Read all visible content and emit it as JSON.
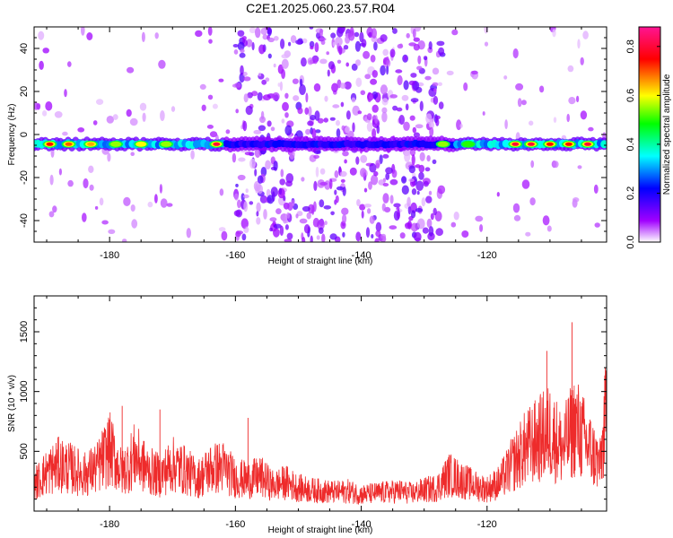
{
  "figure_title": "C2E1.2025.060.23.57.R04",
  "colors": {
    "snr_line": "#ee2b2b",
    "colormap": [
      "#ffffff",
      "#a000ff",
      "#0000ff",
      "#00ffff",
      "#00ff00",
      "#ffff00",
      "#ff0000",
      "#ff1493"
    ]
  },
  "chart_data": [
    {
      "type": "heatmap",
      "xlabel": "Height of straight line (km)",
      "ylabel": "Frequency (Hz)",
      "xlim": [
        -192,
        -101
      ],
      "ylim": [
        -50,
        50
      ],
      "x_ticks": [
        -180,
        -160,
        -140,
        -120
      ],
      "y_ticks": [
        -40,
        -20,
        0,
        20,
        40
      ],
      "band": {
        "frequency": -4.5,
        "description": "strong horizontal ridge near -4.5 Hz across full height range; diffuse speckle from about -160 to -128 km"
      },
      "band_peaks": [
        {
          "x": -189.5,
          "value": 0.75
        },
        {
          "x": -186.5,
          "value": 0.7
        },
        {
          "x": -183,
          "value": 0.65
        },
        {
          "x": -179,
          "value": 0.55
        },
        {
          "x": -175,
          "value": 0.6
        },
        {
          "x": -171,
          "value": 0.55
        },
        {
          "x": -163,
          "value": 0.8
        },
        {
          "x": -127,
          "value": 0.55
        },
        {
          "x": -123,
          "value": 0.5
        },
        {
          "x": -115.5,
          "value": 0.8
        },
        {
          "x": -113,
          "value": 0.8
        },
        {
          "x": -110,
          "value": 0.75
        },
        {
          "x": -107,
          "value": 0.75
        },
        {
          "x": -104,
          "value": 0.8
        }
      ],
      "colorbar": {
        "label": "Normalized spectral amplitude",
        "range": [
          0,
          0.88
        ],
        "ticks": [
          "0.0",
          "0.2",
          "0.4",
          "0.6",
          "0.8"
        ]
      }
    },
    {
      "type": "line",
      "xlabel": "Height of straight line (km)",
      "ylabel": "SNR (10 * v/v)",
      "xlim": [
        -192,
        -101
      ],
      "ylim": [
        0,
        1800
      ],
      "x_ticks": [
        -180,
        -160,
        -140,
        -120
      ],
      "y_ticks": [
        500,
        1000,
        1500
      ],
      "series": [
        {
          "x": [
            -192,
            -190,
            -188,
            -186,
            -184,
            -182,
            -180,
            -178,
            -176,
            -174,
            -172,
            -170,
            -168,
            -166,
            -164,
            -162,
            -160,
            -158,
            -156,
            -154,
            -152,
            -150,
            -148,
            -146,
            -144,
            -142,
            -140,
            -138,
            -136,
            -134,
            -132,
            -130,
            -128,
            -126,
            -124,
            -122,
            -120,
            -118,
            -116,
            -114,
            -112,
            -110,
            -108,
            -106,
            -104,
            -102,
            -101
          ],
          "values": [
            240,
            350,
            420,
            380,
            330,
            390,
            560,
            340,
            500,
            370,
            320,
            420,
            370,
            290,
            380,
            400,
            300,
            280,
            310,
            230,
            260,
            210,
            190,
            180,
            170,
            180,
            150,
            160,
            170,
            180,
            160,
            190,
            210,
            330,
            280,
            230,
            200,
            260,
            420,
            560,
            640,
            720,
            560,
            780,
            590,
            410,
            920
          ]
        }
      ]
    }
  ]
}
